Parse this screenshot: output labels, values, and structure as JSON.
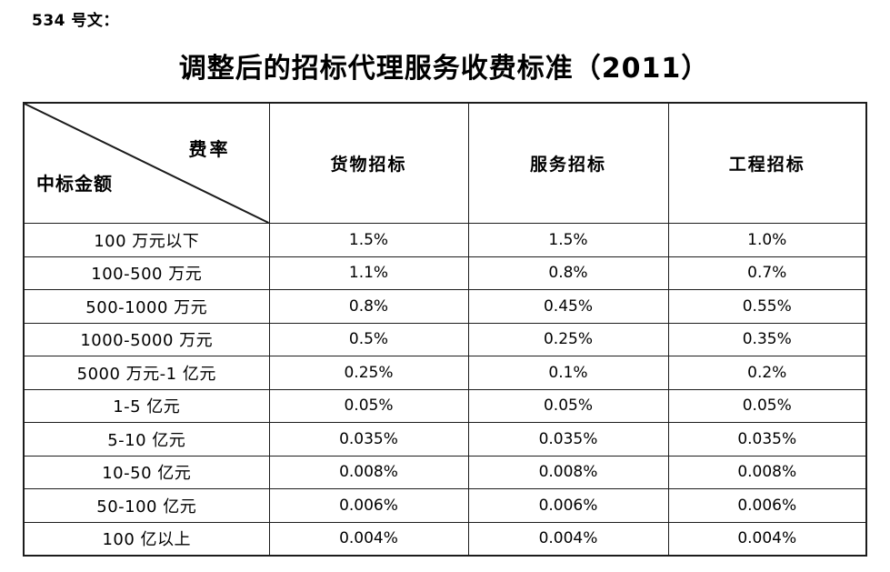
{
  "doc_number": "534 号文：",
  "title": "调整后的招标代理服务收费标准（2011）",
  "table": {
    "corner": {
      "top_right": "费率",
      "bottom_left": "中标金额"
    },
    "columns": [
      "货物招标",
      "服务招标",
      "工程招标"
    ],
    "rows": [
      {
        "label": "100 万元以下",
        "values": [
          "1.5%",
          "1.5%",
          "1.0%"
        ]
      },
      {
        "label": "100-500 万元",
        "values": [
          "1.1%",
          "0.8%",
          "0.7%"
        ]
      },
      {
        "label": "500-1000 万元",
        "values": [
          "0.8%",
          "0.45%",
          "0.55%"
        ]
      },
      {
        "label": "1000-5000 万元",
        "values": [
          "0.5%",
          "0.25%",
          "0.35%"
        ]
      },
      {
        "label": "5000 万元-1 亿元",
        "values": [
          "0.25%",
          "0.1%",
          "0.2%"
        ]
      },
      {
        "label": "1-5 亿元",
        "values": [
          "0.05%",
          "0.05%",
          "0.05%"
        ]
      },
      {
        "label": "5-10 亿元",
        "values": [
          "0.035%",
          "0.035%",
          "0.035%"
        ]
      },
      {
        "label": "10-50 亿元",
        "values": [
          "0.008%",
          "0.008%",
          "0.008%"
        ]
      },
      {
        "label": "50-100 亿元",
        "values": [
          "0.006%",
          "0.006%",
          "0.006%"
        ]
      },
      {
        "label": "100 亿以上",
        "values": [
          "0.004%",
          "0.004%",
          "0.004%"
        ]
      }
    ]
  },
  "colors": {
    "text": "#000000",
    "border": "#1c1c1c",
    "background": "#ffffff"
  }
}
